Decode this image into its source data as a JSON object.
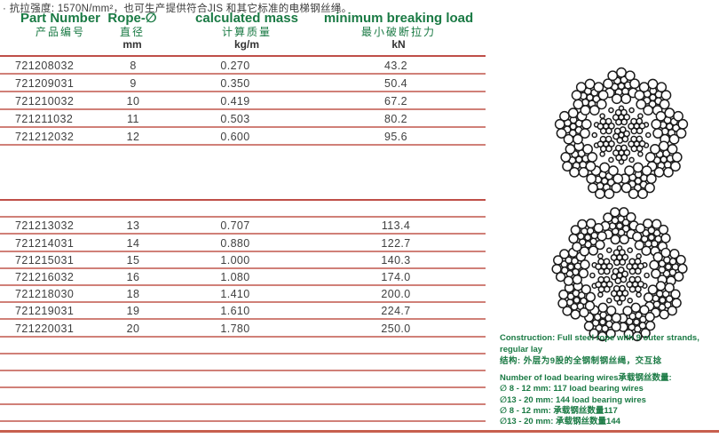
{
  "note": "· 抗拉强度: 1570N/mm²，也可生产提供符合JIS 和其它标准的电梯钢丝绳。",
  "table": {
    "headers": [
      {
        "en": "Part Number",
        "zh": "产品编号",
        "unit": ""
      },
      {
        "en": "Rope-∅",
        "zh": "直径",
        "unit": "mm"
      },
      {
        "en": "calculated mass",
        "zh": "计算质量",
        "unit": "kg/m"
      },
      {
        "en": "minimum breaking load",
        "zh": "最小破断拉力",
        "unit": "kN"
      }
    ],
    "group1": {
      "rows": [
        [
          "721208032",
          "8",
          "0.270",
          "43.2"
        ],
        [
          "721209031",
          "9",
          "0.350",
          "50.4"
        ],
        [
          "721210032",
          "10",
          "0.419",
          "67.2"
        ],
        [
          "721211032",
          "11",
          "0.503",
          "80.2"
        ],
        [
          "721212032",
          "12",
          "0.600",
          "95.6"
        ]
      ]
    },
    "group2": {
      "rows": [
        [
          "721213032",
          "13",
          "0.707",
          "113.4"
        ],
        [
          "721214031",
          "14",
          "0.880",
          "122.7"
        ],
        [
          "721215031",
          "15",
          "1.000",
          "140.3"
        ],
        [
          "721216032",
          "16",
          "1.080",
          "174.0"
        ],
        [
          "721218030",
          "18",
          "1.410",
          "200.0"
        ],
        [
          "721219031",
          "19",
          "1.610",
          "224.7"
        ],
        [
          "721220031",
          "20",
          "1.780",
          "250.0"
        ]
      ]
    }
  },
  "construction": {
    "en": "Construction: Full steel rope with 9 outer strands, regular lay",
    "zh": "结构: 外层为9股的全钢制钢丝绳，交互捻",
    "wires_title": "Number of load bearing wires承载钢丝数量:",
    "wires": [
      "∅ 8 - 12 mm: 117 load bearing wires",
      "∅13 - 20 mm: 144 load bearing wires",
      "∅ 8 - 12 mm: 承载钢丝数量117",
      "∅13 - 20 mm: 承载钢丝数量144"
    ]
  },
  "diagrams": [
    {
      "name": "rope-cross-section-small",
      "outer_strands": 9
    },
    {
      "name": "rope-cross-section-large",
      "outer_strands": 9
    }
  ],
  "colors": {
    "header_green": "#1a7a44",
    "row_line_red": "#d08078",
    "table_border_red": "#bf4f48",
    "bottom_rule_red": "#c75f4e",
    "data_text": "#404040",
    "wire_outline": "#1a1a1a"
  }
}
